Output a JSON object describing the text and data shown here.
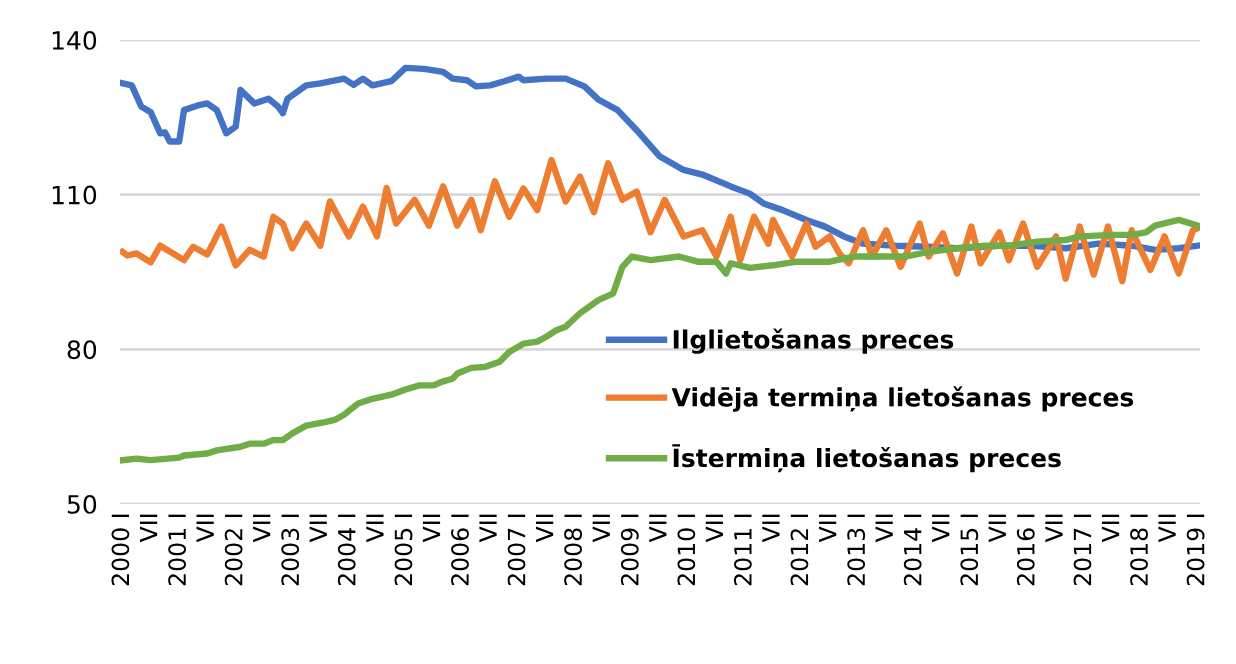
{
  "chart_data": {
    "type": "line",
    "xlim": [
      "1999-12-16",
      "2019-01-16"
    ],
    "xticks": [
      {
        "value": "2000-01",
        "label": "2000 I"
      },
      {
        "value": "2000-07",
        "label": "VII"
      },
      {
        "value": "2001-01",
        "label": "2001 I"
      },
      {
        "value": "2001-07",
        "label": "VII"
      },
      {
        "value": "2002-01",
        "label": "2002 I"
      },
      {
        "value": "2002-07",
        "label": "VII"
      },
      {
        "value": "2003-01",
        "label": "2003 I"
      },
      {
        "value": "2003-07",
        "label": "VII"
      },
      {
        "value": "2004-01",
        "label": "2004 I"
      },
      {
        "value": "2004-07",
        "label": "VII"
      },
      {
        "value": "2005-01",
        "label": "2005 I"
      },
      {
        "value": "2005-07",
        "label": "VII"
      },
      {
        "value": "2006-01",
        "label": "2006 I"
      },
      {
        "value": "2006-07",
        "label": "VII"
      },
      {
        "value": "2007-01",
        "label": "2007 I"
      },
      {
        "value": "2007-07",
        "label": "VII"
      },
      {
        "value": "2008-01",
        "label": "2008 I"
      },
      {
        "value": "2008-07",
        "label": "VII"
      },
      {
        "value": "2009-01",
        "label": "2009 I"
      },
      {
        "value": "2009-07",
        "label": "VII"
      },
      {
        "value": "2010-01",
        "label": "2010 I"
      },
      {
        "value": "2010-07",
        "label": "VII"
      },
      {
        "value": "2011-01",
        "label": "2011 I"
      },
      {
        "value": "2011-07",
        "label": "VII"
      },
      {
        "value": "2012-01",
        "label": "2012 I"
      },
      {
        "value": "2012-07",
        "label": "VII"
      },
      {
        "value": "2013-01",
        "label": "2013 I"
      },
      {
        "value": "2013-07",
        "label": "VII"
      },
      {
        "value": "2014-01",
        "label": "2014 I"
      },
      {
        "value": "2014-07",
        "label": "VII"
      },
      {
        "value": "2015-01",
        "label": "2015 I"
      },
      {
        "value": "2015-07",
        "label": "VII"
      },
      {
        "value": "2016-01",
        "label": "2016 I"
      },
      {
        "value": "2016-07",
        "label": "VII"
      },
      {
        "value": "2017-01",
        "label": "2017 I"
      },
      {
        "value": "2017-07",
        "label": "VII"
      },
      {
        "value": "2018-01",
        "label": "2018 I"
      },
      {
        "value": "2018-07",
        "label": "VII"
      },
      {
        "value": "2019-01",
        "label": "2019 I"
      }
    ],
    "ylim": [
      50,
      140
    ],
    "yticks": [
      50,
      80,
      110,
      140
    ],
    "grid": "y",
    "legend": "bottom right",
    "line_style": "solid",
    "series": [
      {
        "name": "Ilglietošanas preces",
        "color": "#4472c4",
        "x": [
          "2000-01",
          "2000-03",
          "2000-05",
          "2000-07",
          "2000-09",
          "2000-10",
          "2000-11",
          "2001-01",
          "2001-02",
          "2001-05",
          "2001-07",
          "2001-09",
          "2001-11",
          "2002-01",
          "2002-02",
          "2002-05",
          "2002-08",
          "2002-10",
          "2002-11",
          "2002-12",
          "2003-04",
          "2003-07",
          "2003-12",
          "2004-02",
          "2004-04",
          "2004-06",
          "2004-10",
          "2005-01",
          "2005-05",
          "2005-09",
          "2005-11",
          "2006-02",
          "2006-04",
          "2006-07",
          "2006-10",
          "2007-01",
          "2007-02",
          "2007-07",
          "2007-11",
          "2008-03",
          "2008-06",
          "2008-10",
          "2009-02",
          "2009-07",
          "2009-12",
          "2010-04",
          "2010-10",
          "2011-02",
          "2011-05",
          "2011-09",
          "2012-02",
          "2012-06",
          "2012-10",
          "2013-02",
          "2013-09",
          "2014-04",
          "2014-10",
          "2015-07",
          "2016-02",
          "2016-09",
          "2017-04",
          "2017-11",
          "2018-04",
          "2018-09",
          "2019-01"
        ],
        "values": [
          131.6,
          131.2,
          127.1,
          126.0,
          121.9,
          122.1,
          120.3,
          120.3,
          126.4,
          127.3,
          127.7,
          126.4,
          121.9,
          123.2,
          130.3,
          127.7,
          128.6,
          127.1,
          125.8,
          128.6,
          131.2,
          131.6,
          132.5,
          131.3,
          132.5,
          131.2,
          132.0,
          134.6,
          134.4,
          133.8,
          132.5,
          132.2,
          131.0,
          131.2,
          132.0,
          132.9,
          132.2,
          132.5,
          132.5,
          131.0,
          128.4,
          126.4,
          122.5,
          117.4,
          114.8,
          113.9,
          111.6,
          110.2,
          108.3,
          107.0,
          105.1,
          103.8,
          101.9,
          100.5,
          100.1,
          99.9,
          99.6,
          100.1,
          100.1,
          99.6,
          100.5,
          100.1,
          99.3,
          99.6,
          100.1
        ]
      },
      {
        "name": "Vidēja termiņa lietošanas preces",
        "color": "#ed7d31",
        "x": [
          "2000-01",
          "2000-02",
          "2000-04",
          "2000-07",
          "2000-09",
          "2001-02",
          "2001-04",
          "2001-07",
          "2001-10",
          "2002-01",
          "2002-04",
          "2002-07",
          "2002-09",
          "2002-11",
          "2003-01",
          "2003-04",
          "2003-07",
          "2003-09",
          "2004-01",
          "2004-04",
          "2004-07",
          "2004-09",
          "2004-11",
          "2005-03",
          "2005-06",
          "2005-09",
          "2005-12",
          "2006-03",
          "2006-05",
          "2006-08",
          "2006-11",
          "2007-02",
          "2007-05",
          "2007-08",
          "2007-11",
          "2008-02",
          "2008-05",
          "2008-08",
          "2008-11",
          "2009-02",
          "2009-05",
          "2009-08",
          "2009-12",
          "2010-04",
          "2010-07",
          "2010-10",
          "2010-12",
          "2011-03",
          "2011-06",
          "2011-07",
          "2011-11",
          "2012-02",
          "2012-04",
          "2012-07",
          "2012-09",
          "2012-11",
          "2013-02",
          "2013-04",
          "2013-07",
          "2013-10",
          "2014-02",
          "2014-04",
          "2014-07",
          "2014-10",
          "2015-01",
          "2015-03",
          "2015-07",
          "2015-09",
          "2015-12",
          "2016-03",
          "2016-07",
          "2016-09",
          "2016-12",
          "2017-03",
          "2017-06",
          "2017-09",
          "2017-11",
          "2018-03",
          "2018-06",
          "2018-09",
          "2018-12",
          "2019-01"
        ],
        "values": [
          98.9,
          98.2,
          98.6,
          96.9,
          100.1,
          97.3,
          99.9,
          98.4,
          103.8,
          96.3,
          99.3,
          98.0,
          105.7,
          104.4,
          99.6,
          104.4,
          100.1,
          108.7,
          101.9,
          107.7,
          101.9,
          111.3,
          104.4,
          109.0,
          104.0,
          111.6,
          104.0,
          109.0,
          103.1,
          112.6,
          105.7,
          111.2,
          107.0,
          116.7,
          108.7,
          113.5,
          106.6,
          116.1,
          109.0,
          110.6,
          102.7,
          109.0,
          101.9,
          103.1,
          98.0,
          105.7,
          97.3,
          105.7,
          100.5,
          105.1,
          98.0,
          104.4,
          99.9,
          101.9,
          98.6,
          96.7,
          103.1,
          98.0,
          103.1,
          96.0,
          104.4,
          98.0,
          102.5,
          94.7,
          103.8,
          96.7,
          102.7,
          97.3,
          104.4,
          96.0,
          101.9,
          93.7,
          103.8,
          94.5,
          103.8,
          93.2,
          103.1,
          95.4,
          101.9,
          94.7,
          103.1,
          103.5
        ]
      },
      {
        "name": "Īstermiņa lietošanas preces",
        "color": "#70ad47",
        "x": [
          "2000-01",
          "2000-04",
          "2000-07",
          "2001-01",
          "2001-02",
          "2001-07",
          "2001-09",
          "2002-02",
          "2002-04",
          "2002-07",
          "2002-09",
          "2002-11",
          "2003-01",
          "2003-04",
          "2003-08",
          "2003-10",
          "2003-12",
          "2004-03",
          "2004-06",
          "2004-10",
          "2005-01",
          "2005-04",
          "2005-07",
          "2005-09",
          "2005-11",
          "2005-12",
          "2006-03",
          "2006-06",
          "2006-09",
          "2006-11",
          "2007-02",
          "2007-05",
          "2007-07",
          "2007-09",
          "2007-11",
          "2008-02",
          "2008-04",
          "2008-06",
          "2008-09",
          "2008-11",
          "2009-01",
          "2009-05",
          "2009-11",
          "2010-03",
          "2010-07",
          "2010-09",
          "2010-10",
          "2011-02",
          "2011-07",
          "2011-12",
          "2012-07",
          "2012-12",
          "2013-05",
          "2013-11",
          "2014-04",
          "2014-10",
          "2015-04",
          "2015-09",
          "2016-03",
          "2016-09",
          "2016-12",
          "2017-07",
          "2017-11",
          "2018-02",
          "2018-04",
          "2018-09",
          "2019-01"
        ],
        "values": [
          58.5,
          58.8,
          58.5,
          59.0,
          59.4,
          59.8,
          60.4,
          61.1,
          61.7,
          61.7,
          62.4,
          62.4,
          63.7,
          65.2,
          65.9,
          66.3,
          67.3,
          69.5,
          70.4,
          71.2,
          72.2,
          73.0,
          73.0,
          73.8,
          74.3,
          75.3,
          76.4,
          76.6,
          77.6,
          79.5,
          81.1,
          81.5,
          82.5,
          83.7,
          84.4,
          87.0,
          88.3,
          89.6,
          90.8,
          96.0,
          98.0,
          97.3,
          98.0,
          97.0,
          97.0,
          94.7,
          96.7,
          95.8,
          96.3,
          97.0,
          97.0,
          98.0,
          98.0,
          98.0,
          98.9,
          99.6,
          100.1,
          100.1,
          100.9,
          101.2,
          101.9,
          102.2,
          102.2,
          102.7,
          104.0,
          105.1,
          104.0
        ]
      }
    ]
  }
}
